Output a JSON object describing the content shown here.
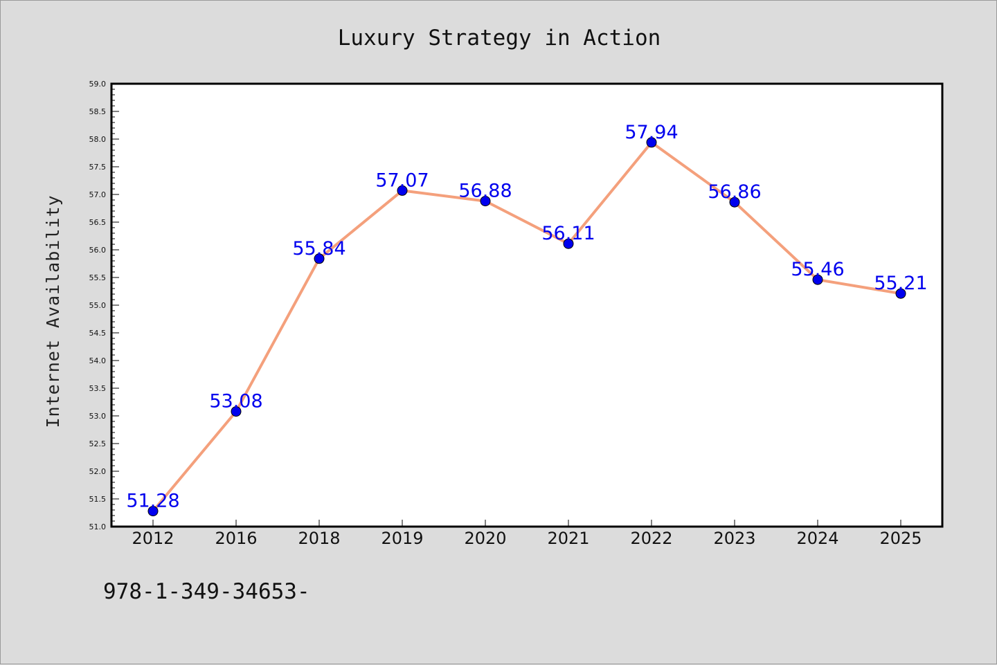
{
  "chart_data": {
    "type": "line",
    "title": "Luxury Strategy in Action",
    "xlabel": "",
    "ylabel": "Internet Availability",
    "categories": [
      "2012",
      "2016",
      "2018",
      "2019",
      "2020",
      "2021",
      "2022",
      "2023",
      "2024",
      "2025"
    ],
    "series": [
      {
        "values": [
          51.28,
          53.08,
          55.84,
          57.07,
          56.88,
          56.11,
          57.94,
          56.86,
          55.46,
          55.21
        ],
        "data_labels": [
          "51.28",
          "53.08",
          "55.84",
          "57.07",
          "56.88",
          "56.11",
          "57.94",
          "56.86",
          "55.46",
          "55.21"
        ],
        "line_color": "#f4a07c",
        "marker_color": "#0000ee"
      }
    ],
    "ylim": [
      51.0,
      59.0
    ],
    "yticks": [
      "51.0",
      "51.5",
      "52.0",
      "52.5",
      "53.0",
      "53.5",
      "54.0",
      "54.5",
      "55.0",
      "55.5",
      "56.0",
      "56.5",
      "57.0",
      "57.5",
      "58.0",
      "58.5",
      "59.0"
    ],
    "grid": false,
    "legend": false
  },
  "footer_text": "978-1-349-34653-",
  "colors": {
    "background": "#dcdcdc",
    "plot_background": "#ffffff",
    "line": "#f4a07c",
    "marker": "#0000ee",
    "data_label": "#0000ee"
  }
}
